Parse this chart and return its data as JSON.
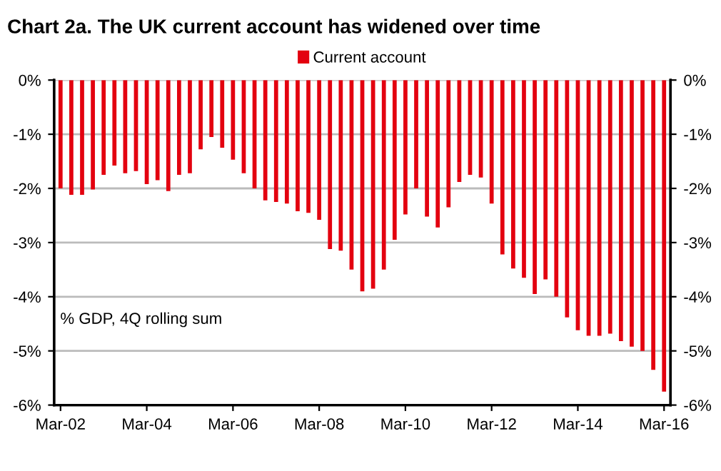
{
  "chart_data": {
    "type": "bar",
    "title": "Chart 2a. The UK current account has widened over time",
    "categories": [
      "Mar-02",
      null,
      null,
      null,
      null,
      null,
      null,
      null,
      "Mar-04",
      null,
      null,
      null,
      null,
      null,
      null,
      null,
      "Mar-06",
      null,
      null,
      null,
      null,
      null,
      null,
      null,
      "Mar-08",
      null,
      null,
      null,
      null,
      null,
      null,
      null,
      "Mar-10",
      null,
      null,
      null,
      null,
      null,
      null,
      null,
      "Mar-12",
      null,
      null,
      null,
      null,
      null,
      null,
      null,
      "Mar-14",
      null,
      null,
      null,
      null,
      null,
      null,
      null,
      "Mar-16"
    ],
    "series": [
      {
        "name": "Current account",
        "color": "#e3000f",
        "values": [
          -2.0,
          -2.12,
          -2.12,
          -2.02,
          -1.75,
          -1.58,
          -1.72,
          -1.68,
          -1.92,
          -1.85,
          -2.05,
          -1.75,
          -1.72,
          -1.28,
          -1.05,
          -1.25,
          -1.47,
          -1.72,
          -2.0,
          -2.22,
          -2.25,
          -2.28,
          -2.42,
          -2.45,
          -2.58,
          -3.12,
          -3.15,
          -3.5,
          -3.9,
          -3.85,
          -3.5,
          -2.95,
          -2.48,
          -2.0,
          -2.52,
          -2.72,
          -2.35,
          -1.88,
          -1.75,
          -1.8,
          -2.28,
          -3.22,
          -3.48,
          -3.65,
          -3.95,
          -3.68,
          -4.0,
          -4.38,
          -4.62,
          -4.72,
          -4.72,
          -4.68,
          -4.82,
          -4.92,
          -5.0,
          -5.35,
          -5.75
        ]
      }
    ],
    "ylim": [
      -6,
      0
    ],
    "yticks": [
      {
        "value": 0,
        "label": "0%"
      },
      {
        "value": -1,
        "label": "-1%"
      },
      {
        "value": -2,
        "label": "-2%"
      },
      {
        "value": -3,
        "label": "-3%"
      },
      {
        "value": -4,
        "label": "-4%"
      },
      {
        "value": -5,
        "label": "-5%"
      },
      {
        "value": -6,
        "label": "-6%"
      }
    ],
    "y2lim": [
      -6,
      0
    ],
    "y2ticks": [
      {
        "value": 0,
        "label": "0%"
      },
      {
        "value": -1,
        "label": "-1%"
      },
      {
        "value": -2,
        "label": "-2%"
      },
      {
        "value": -3,
        "label": "-3%"
      },
      {
        "value": -4,
        "label": "-4%"
      },
      {
        "value": -5,
        "label": "-5%"
      },
      {
        "value": -6,
        "label": "-6%"
      }
    ],
    "annotations": [
      "% GDP, 4Q rolling sum"
    ],
    "grid": "y",
    "legend": "top"
  }
}
